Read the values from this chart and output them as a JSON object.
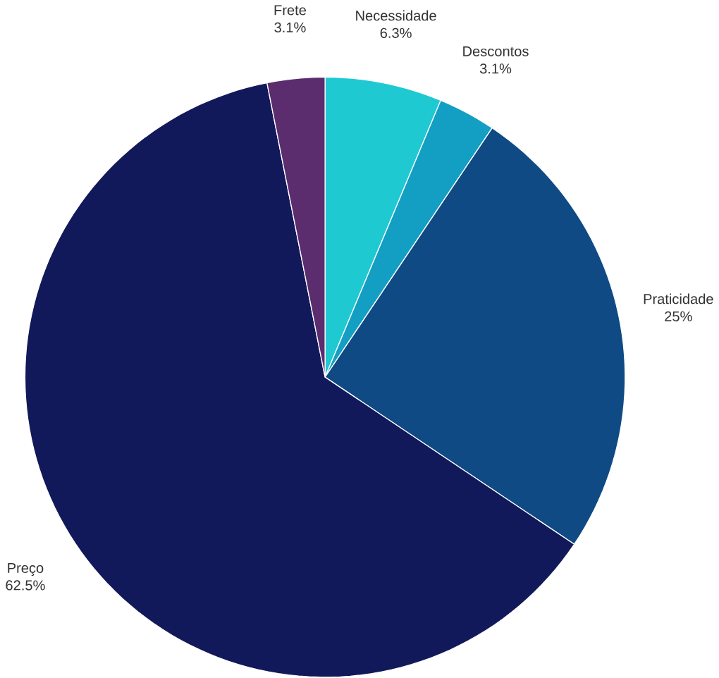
{
  "chart_data": {
    "type": "pie",
    "categories": [
      "Necessidade",
      "Descontos",
      "Praticidade",
      "Preço",
      "Frete"
    ],
    "values": [
      6.3,
      3.1,
      25,
      62.5,
      3.1
    ],
    "value_labels": [
      "6.3%",
      "3.1%",
      "25%",
      "62.5%",
      "3.1%"
    ],
    "colors": [
      "#1ec9d2",
      "#139fc3",
      "#0f4a84",
      "#12195a",
      "#5b2d6e"
    ]
  }
}
